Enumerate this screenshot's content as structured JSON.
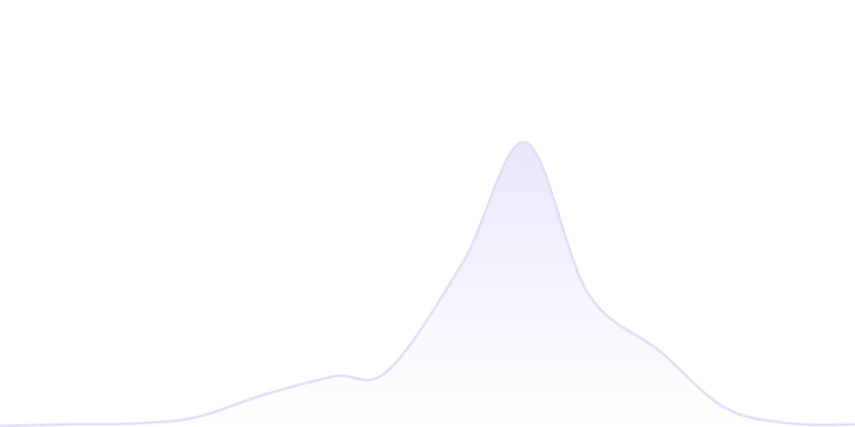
{
  "chart_data": {
    "type": "area",
    "title": "",
    "xlabel": "",
    "ylabel": "",
    "axes_visible": false,
    "grid": false,
    "legend": "none",
    "smooth": true,
    "x": [
      0,
      1,
      2,
      3,
      4,
      5,
      6,
      7,
      8,
      9,
      10,
      11,
      12,
      13
    ],
    "xlim": [
      0,
      13
    ],
    "ylim": [
      0,
      150
    ],
    "series": [
      {
        "values": [
          0,
          0.6,
          0.9,
          3.1,
          10.9,
          17.5,
          19.4,
          57.8,
          100,
          46.9,
          26.6,
          6.3,
          0.9,
          0.6
        ]
      }
    ],
    "colors": {
      "stroke": "#e3def9",
      "fill_top": "#ebe7fc",
      "fill_bottom": "#ffffff"
    }
  }
}
